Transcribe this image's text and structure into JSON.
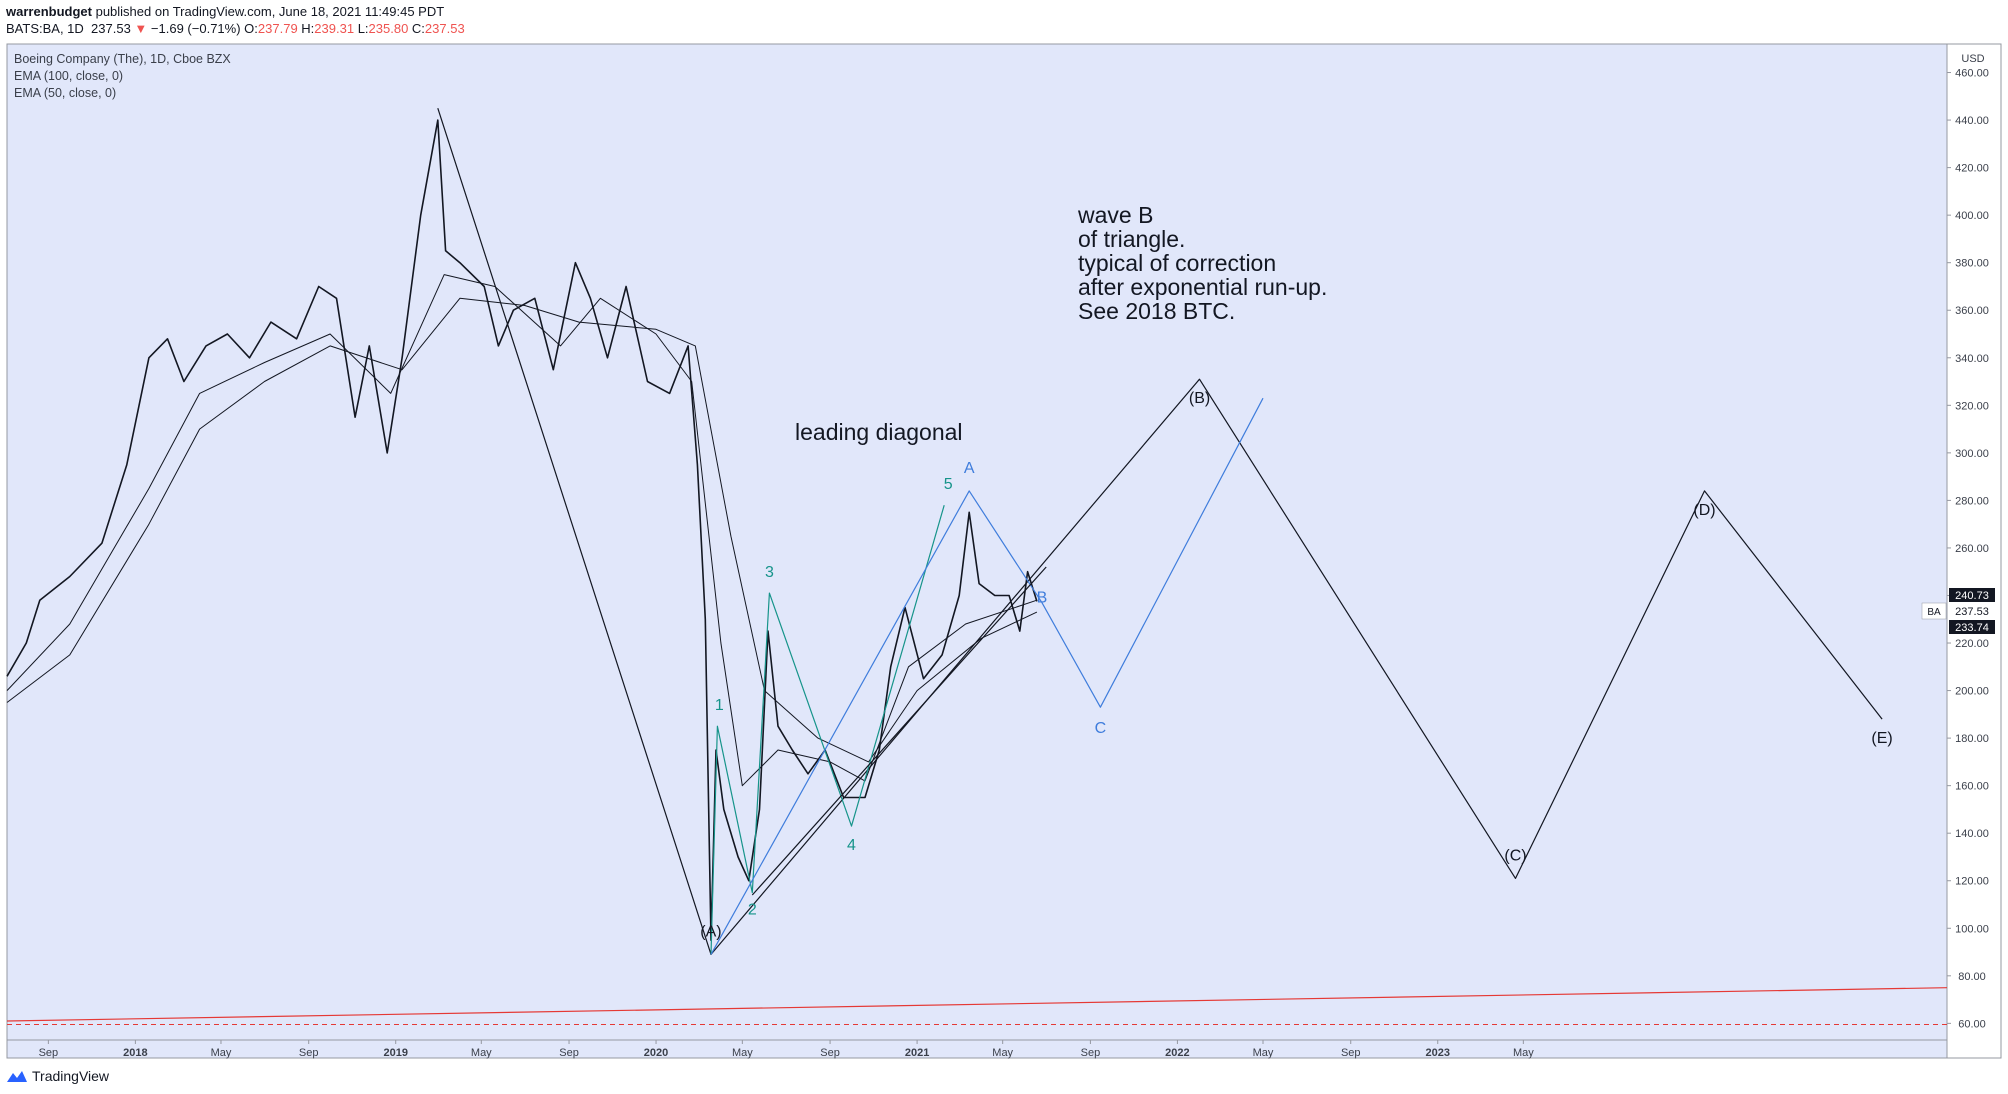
{
  "header": {
    "author": "warrenbudget",
    "published_text": "published on TradingView.com, June 18, 2021 11:49:45 PDT",
    "symbol_line": {
      "symbol": "BATS:BA, 1D",
      "price": "237.53",
      "change": "−1.69 (−0.71%)",
      "open_label": "O:",
      "open": "237.79",
      "high_label": "H:",
      "high": "239.31",
      "low_label": "L:",
      "low": "235.80",
      "close_label": "C:",
      "close": "237.53"
    }
  },
  "legend": {
    "title": "Boeing Company (The), 1D, Cboe BZX",
    "ema100": "EMA (100, close, 0)",
    "ema50": "EMA (50, close, 0)"
  },
  "annotations": {
    "wave_b_note": "wave B\nof triangle.\ntypical of correction\nafter exponential run-up.\nSee 2018 BTC.",
    "leading_diagonal": "leading diagonal"
  },
  "price_tags": {
    "upper": "240.73",
    "symbol": "BA",
    "last": "237.53",
    "lower": "233.74"
  },
  "footer": {
    "brand": "TradingView"
  },
  "colors": {
    "plot_bg": "#e1e7fa",
    "black": "#131722",
    "teal": "#16948a",
    "blue": "#3f7ddc",
    "red": "#e53935"
  },
  "chart_data": {
    "type": "line",
    "title": "Boeing Company (The), 1D, Cboe BZX",
    "currency_label": "USD",
    "y_ticks": [
      460,
      440,
      420,
      400,
      380,
      360,
      340,
      320,
      300,
      280,
      260,
      240,
      220,
      200,
      180,
      160,
      140,
      120,
      100,
      80,
      60
    ],
    "ylim": [
      53,
      472
    ],
    "xlim": [
      "2017-07-05",
      "2024-12-15"
    ],
    "x_ticks": [
      {
        "date": "2017-09-01",
        "label": "Sep"
      },
      {
        "date": "2018-01-01",
        "label": "2018"
      },
      {
        "date": "2018-05-01",
        "label": "May"
      },
      {
        "date": "2018-09-01",
        "label": "Sep"
      },
      {
        "date": "2019-01-01",
        "label": "2019"
      },
      {
        "date": "2019-05-01",
        "label": "May"
      },
      {
        "date": "2019-09-01",
        "label": "Sep"
      },
      {
        "date": "2020-01-01",
        "label": "2020"
      },
      {
        "date": "2020-05-01",
        "label": "May"
      },
      {
        "date": "2020-09-01",
        "label": "Sep"
      },
      {
        "date": "2021-01-01",
        "label": "2021"
      },
      {
        "date": "2021-05-01",
        "label": "May"
      },
      {
        "date": "2021-09-01",
        "label": "Sep"
      },
      {
        "date": "2022-01-01",
        "label": "2022"
      },
      {
        "date": "2022-05-01",
        "label": "May"
      },
      {
        "date": "2022-09-01",
        "label": "Sep"
      },
      {
        "date": "2023-01-01",
        "label": "2023"
      },
      {
        "date": "2023-05-01",
        "label": "May"
      }
    ],
    "series": [
      {
        "name": "",
        "style": "price",
        "points": [
          [
            "2017-07-05",
            206
          ],
          [
            "2017-08-01",
            220
          ],
          [
            "2017-08-20",
            238
          ],
          [
            "2017-10-01",
            248
          ],
          [
            "2017-11-15",
            262
          ],
          [
            "2017-12-20",
            295
          ],
          [
            "2018-01-20",
            340
          ],
          [
            "2018-02-15",
            348
          ],
          [
            "2018-03-10",
            330
          ],
          [
            "2018-04-10",
            345
          ],
          [
            "2018-05-10",
            350
          ],
          [
            "2018-06-10",
            340
          ],
          [
            "2018-07-10",
            355
          ],
          [
            "2018-08-15",
            348
          ],
          [
            "2018-09-15",
            370
          ],
          [
            "2018-10-10",
            365
          ],
          [
            "2018-11-05",
            315
          ],
          [
            "2018-11-25",
            345
          ],
          [
            "2018-12-20",
            300
          ],
          [
            "2019-01-10",
            340
          ],
          [
            "2019-02-05",
            400
          ],
          [
            "2019-03-01",
            440
          ],
          [
            "2019-03-12",
            385
          ],
          [
            "2019-04-01",
            380
          ],
          [
            "2019-05-05",
            370
          ],
          [
            "2019-05-25",
            345
          ],
          [
            "2019-06-15",
            360
          ],
          [
            "2019-07-15",
            365
          ],
          [
            "2019-08-10",
            335
          ],
          [
            "2019-09-10",
            380
          ],
          [
            "2019-10-01",
            365
          ],
          [
            "2019-10-25",
            340
          ],
          [
            "2019-11-20",
            370
          ],
          [
            "2019-12-20",
            330
          ],
          [
            "2020-01-20",
            325
          ],
          [
            "2020-02-15",
            345
          ],
          [
            "2020-02-28",
            295
          ],
          [
            "2020-03-10",
            230
          ],
          [
            "2020-03-18",
            95
          ],
          [
            "2020-03-25",
            175
          ],
          [
            "2020-04-05",
            150
          ],
          [
            "2020-04-25",
            130
          ],
          [
            "2020-05-10",
            120
          ],
          [
            "2020-05-25",
            150
          ],
          [
            "2020-06-06",
            225
          ],
          [
            "2020-06-20",
            185
          ],
          [
            "2020-07-10",
            175
          ],
          [
            "2020-08-01",
            165
          ],
          [
            "2020-08-25",
            175
          ],
          [
            "2020-09-20",
            155
          ],
          [
            "2020-10-20",
            155
          ],
          [
            "2020-11-09",
            175
          ],
          [
            "2020-11-25",
            210
          ],
          [
            "2020-12-15",
            235
          ],
          [
            "2021-01-10",
            205
          ],
          [
            "2021-02-05",
            215
          ],
          [
            "2021-03-01",
            240
          ],
          [
            "2021-03-15",
            275
          ],
          [
            "2021-03-29",
            245
          ],
          [
            "2021-04-20",
            240
          ],
          [
            "2021-05-10",
            240
          ],
          [
            "2021-05-25",
            225
          ],
          [
            "2021-06-05",
            250
          ],
          [
            "2021-06-18",
            237.53
          ]
        ]
      },
      {
        "name": "EMA (50, close, 0)",
        "style": "ema",
        "points": [
          [
            "2017-07-05",
            200
          ],
          [
            "2017-10-01",
            228
          ],
          [
            "2018-01-20",
            285
          ],
          [
            "2018-04-01",
            325
          ],
          [
            "2018-07-01",
            338
          ],
          [
            "2018-10-01",
            350
          ],
          [
            "2018-12-25",
            325
          ],
          [
            "2019-03-10",
            375
          ],
          [
            "2019-05-20",
            370
          ],
          [
            "2019-08-20",
            345
          ],
          [
            "2019-10-15",
            365
          ],
          [
            "2020-01-01",
            350
          ],
          [
            "2020-02-20",
            330
          ],
          [
            "2020-04-01",
            220
          ],
          [
            "2020-05-01",
            160
          ],
          [
            "2020-06-20",
            175
          ],
          [
            "2020-09-01",
            170
          ],
          [
            "2020-10-20",
            162
          ],
          [
            "2020-12-20",
            210
          ],
          [
            "2021-03-10",
            228
          ],
          [
            "2021-06-18",
            238
          ]
        ]
      },
      {
        "name": "EMA (100, close, 0)",
        "style": "ema",
        "points": [
          [
            "2017-07-05",
            195
          ],
          [
            "2017-10-01",
            215
          ],
          [
            "2018-01-20",
            270
          ],
          [
            "2018-04-01",
            310
          ],
          [
            "2018-07-01",
            330
          ],
          [
            "2018-10-01",
            345
          ],
          [
            "2019-01-10",
            335
          ],
          [
            "2019-04-01",
            365
          ],
          [
            "2019-07-01",
            362
          ],
          [
            "2019-09-15",
            355
          ],
          [
            "2020-01-01",
            352
          ],
          [
            "2020-02-25",
            345
          ],
          [
            "2020-04-15",
            265
          ],
          [
            "2020-06-01",
            200
          ],
          [
            "2020-08-15",
            180
          ],
          [
            "2020-10-25",
            170
          ],
          [
            "2021-01-01",
            200
          ],
          [
            "2021-04-01",
            222
          ],
          [
            "2021-06-18",
            233
          ]
        ]
      },
      {
        "name": "",
        "style": "wave-black",
        "labels": [
          "(A)",
          "(B)",
          "(C)",
          "(D)",
          "(E)"
        ],
        "points": [
          [
            "2019-03-01",
            445
          ],
          [
            "2020-03-18",
            89
          ],
          [
            "2022-02-01",
            331
          ],
          [
            "2023-04-20",
            121
          ],
          [
            "2024-01-10",
            284
          ],
          [
            "2024-09-15",
            188
          ]
        ]
      },
      {
        "name": "",
        "style": "wave-teal",
        "labels": [
          "1",
          "2",
          "3",
          "4",
          "5"
        ],
        "points": [
          [
            "2020-03-18",
            89
          ],
          [
            "2020-03-27",
            185
          ],
          [
            "2020-05-15",
            115
          ],
          [
            "2020-06-08",
            241
          ],
          [
            "2020-10-01",
            143
          ],
          [
            "2021-02-08",
            278
          ]
        ]
      },
      {
        "name": "",
        "style": "wave-blue",
        "labels": [
          "A",
          "B",
          "C"
        ],
        "points": [
          [
            "2020-03-18",
            89
          ],
          [
            "2021-03-15",
            284
          ],
          [
            "2021-06-25",
            237
          ],
          [
            "2021-09-15",
            193
          ],
          [
            "2022-05-01",
            323
          ]
        ]
      },
      {
        "name": "",
        "style": "trend-black",
        "points": [
          [
            "2020-05-15",
            114
          ],
          [
            "2021-07-01",
            252
          ]
        ]
      },
      {
        "name": "",
        "style": "trend-red",
        "points": [
          [
            "2017-07-05",
            61
          ],
          [
            "2024-12-15",
            75
          ]
        ]
      },
      {
        "name": "",
        "style": "dashed-red",
        "points": [
          [
            "2017-07-05",
            59.5
          ],
          [
            "2024-12-15",
            59.5
          ]
        ]
      }
    ]
  }
}
